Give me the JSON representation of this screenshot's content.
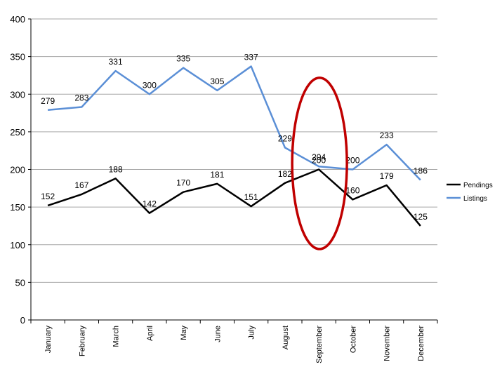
{
  "chart_data": {
    "type": "line",
    "categories": [
      "January",
      "February",
      "March",
      "April",
      "May",
      "June",
      "July",
      "August",
      "September",
      "October",
      "November",
      "December"
    ],
    "series": [
      {
        "name": "Pendings",
        "color": "#000000",
        "values": [
          152,
          167,
          188,
          142,
          170,
          181,
          151,
          182,
          200,
          160,
          179,
          125
        ]
      },
      {
        "name": "Listings",
        "color": "#5b8fd6",
        "values": [
          279,
          283,
          331,
          300,
          335,
          305,
          337,
          229,
          204,
          200,
          233,
          186
        ]
      }
    ],
    "ylim": [
      0,
      400
    ],
    "yticks": [
      0,
      50,
      100,
      150,
      200,
      250,
      300,
      350,
      400
    ],
    "grid": true,
    "legend": "right",
    "annotation": {
      "type": "ellipse",
      "color": "#c00000",
      "around_category": "September"
    }
  }
}
